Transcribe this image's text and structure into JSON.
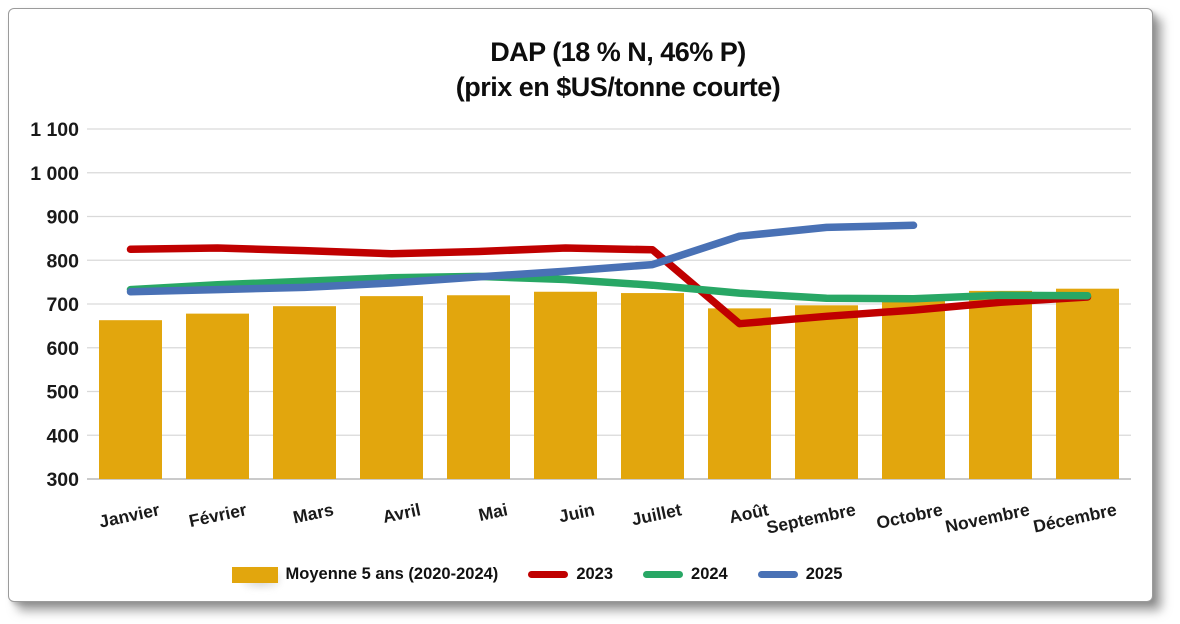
{
  "chart_data": {
    "type": "combo",
    "title_line1": "DAP (18 % N, 46% P)",
    "title_line2": "(prix en $US/tonne courte)",
    "categories": [
      "Janvier",
      "Février",
      "Mars",
      "Avril",
      "Mai",
      "Juin",
      "Juillet",
      "Août",
      "Septembre",
      "Octobre",
      "Novembre",
      "Décembre"
    ],
    "series": [
      {
        "name": "Moyenne 5 ans (2020-2024)",
        "type": "bar",
        "color": "#E2A60D",
        "values": [
          663,
          678,
          695,
          718,
          720,
          728,
          725,
          690,
          697,
          710,
          730,
          735
        ]
      },
      {
        "name": "2023",
        "type": "line",
        "color": "#C00000",
        "values": [
          825,
          828,
          822,
          815,
          820,
          828,
          824,
          655,
          672,
          686,
          704,
          716
        ]
      },
      {
        "name": "2024",
        "type": "line",
        "color": "#28A765",
        "values": [
          733,
          744,
          752,
          760,
          763,
          756,
          743,
          725,
          713,
          712,
          720,
          719
        ]
      },
      {
        "name": "2025",
        "type": "line",
        "color": "#4971B5",
        "values": [
          728,
          733,
          738,
          748,
          762,
          775,
          790,
          855,
          875,
          880,
          null,
          null
        ]
      }
    ],
    "y_axis": {
      "min": 300,
      "max": 1100,
      "step": 100,
      "tick_labels": [
        "300",
        "400",
        "500",
        "600",
        "700",
        "800",
        "900",
        "1 000",
        "1 100"
      ]
    },
    "grid": true,
    "legend_position": "bottom",
    "colors": {
      "grid": "#D9D9D9",
      "axis": "#ABABAB",
      "text": "#1A1A1A"
    }
  }
}
